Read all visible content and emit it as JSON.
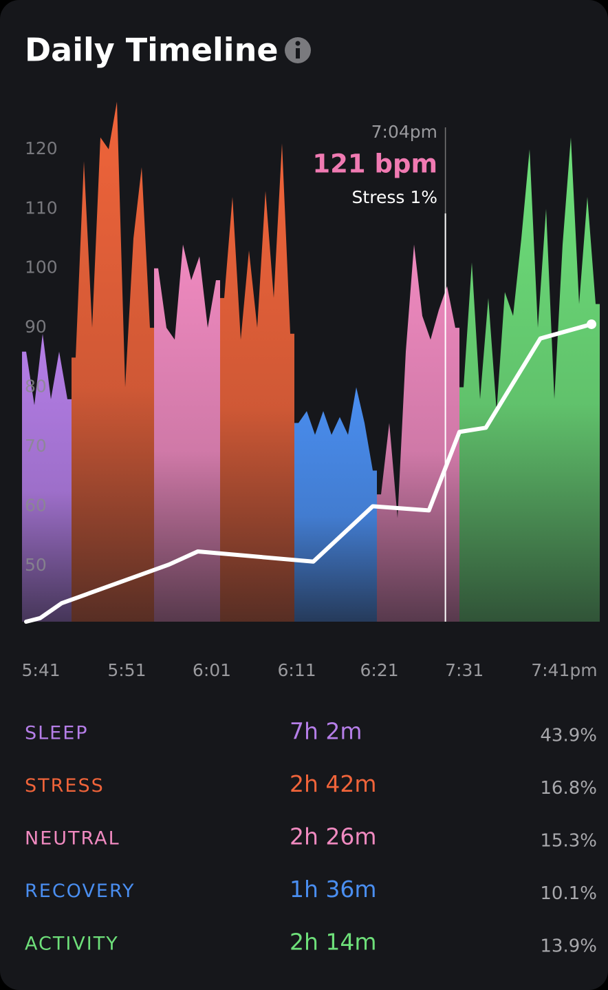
{
  "header": {
    "title": "Daily Timeline"
  },
  "chart_data": {
    "type": "area",
    "ylim": [
      40.6,
      128.9
    ],
    "yticks": [
      50,
      60,
      70,
      80,
      90,
      100,
      110,
      120
    ],
    "grid": false,
    "xlim": [
      0,
      69
    ],
    "xticks": [
      {
        "value": 1.8,
        "label": "5:41"
      },
      {
        "value": 12.2,
        "label": "5:51"
      },
      {
        "value": 22.5,
        "label": "6:01"
      },
      {
        "value": 32.8,
        "label": "6:11"
      },
      {
        "value": 42.8,
        "label": "6:21"
      },
      {
        "value": 53.1,
        "label": "7:31"
      },
      {
        "value": 65.2,
        "label": "7:41pm"
      }
    ],
    "series": [
      {
        "color": "#b57ee8",
        "values": [
          86,
          77,
          89,
          78,
          86,
          78,
          null,
          null,
          null,
          null,
          null,
          null,
          null,
          null,
          null,
          null,
          null,
          null,
          null,
          null,
          null,
          null,
          null,
          null,
          null,
          null,
          null,
          null,
          null,
          null,
          null,
          null,
          null,
          null,
          null,
          null,
          null,
          null,
          null,
          null,
          null,
          null,
          null,
          null,
          null,
          null,
          null,
          null,
          null,
          null,
          null,
          null,
          null,
          null,
          null,
          null,
          null,
          null,
          null,
          null,
          null,
          null,
          null,
          null,
          null,
          null,
          null,
          null,
          null,
          null
        ]
      },
      {
        "color": "#f0643a",
        "values": [
          null,
          null,
          null,
          null,
          null,
          null,
          85,
          118,
          90,
          122,
          120,
          128,
          80,
          105,
          117,
          90,
          null,
          null,
          null,
          null,
          null,
          null,
          null,
          null,
          95,
          112,
          88,
          103,
          90,
          113,
          95,
          121,
          89,
          null,
          null,
          null,
          null,
          null,
          null,
          null,
          null,
          null,
          null,
          null,
          null,
          null,
          null,
          null,
          null,
          null,
          null,
          null,
          null,
          null,
          null,
          null,
          null,
          null,
          null,
          null,
          null,
          null,
          null,
          null,
          null,
          null,
          null,
          null,
          null,
          null
        ]
      },
      {
        "color": "#f08ac0",
        "values": [
          null,
          null,
          null,
          null,
          null,
          null,
          null,
          null,
          null,
          null,
          null,
          null,
          null,
          null,
          null,
          null,
          100,
          90,
          88,
          104,
          98,
          102,
          90,
          98,
          null,
          null,
          null,
          null,
          null,
          null,
          null,
          null,
          null,
          null,
          null,
          null,
          null,
          null,
          null,
          null,
          null,
          null,
          null,
          62,
          74,
          58,
          86,
          104,
          92,
          88,
          93,
          97,
          90,
          null,
          null,
          null,
          null,
          null,
          null,
          null,
          null,
          null,
          null,
          null,
          null,
          null,
          null,
          null,
          null,
          null
        ]
      },
      {
        "color": "#4a8ef0",
        "values": [
          null,
          null,
          null,
          null,
          null,
          null,
          null,
          null,
          null,
          null,
          null,
          null,
          null,
          null,
          null,
          null,
          null,
          null,
          null,
          null,
          null,
          null,
          null,
          null,
          null,
          null,
          null,
          null,
          null,
          null,
          null,
          null,
          null,
          74,
          76,
          72,
          76,
          72,
          75,
          72,
          80,
          74,
          66,
          null,
          null,
          null,
          null,
          null,
          null,
          null,
          null,
          null,
          null,
          null,
          null,
          null,
          null,
          null,
          null,
          null,
          null,
          null,
          null,
          null,
          null,
          null,
          null,
          null,
          null,
          null
        ]
      },
      {
        "color": "#6ee07a",
        "values": [
          null,
          null,
          null,
          null,
          null,
          null,
          null,
          null,
          null,
          null,
          null,
          null,
          null,
          null,
          null,
          null,
          null,
          null,
          null,
          null,
          null,
          null,
          null,
          null,
          null,
          null,
          null,
          null,
          null,
          null,
          null,
          null,
          null,
          null,
          null,
          null,
          null,
          null,
          null,
          null,
          null,
          null,
          null,
          null,
          null,
          null,
          null,
          null,
          null,
          null,
          null,
          null,
          null,
          80,
          101,
          78,
          95,
          76,
          96,
          92,
          105,
          120,
          90,
          110,
          78,
          104,
          122,
          94,
          112,
          94
        ]
      }
    ],
    "line": {
      "color": "#ffffff",
      "x": [
        0,
        1.7,
        4.3,
        17.3,
        20.8,
        34.8,
        42,
        48.8,
        52.5,
        55.7,
        62.3,
        68.5
      ],
      "values": [
        40.6,
        41.2,
        43.7,
        50.2,
        52.4,
        50.7,
        60.0,
        59.3,
        72.5,
        73.2,
        88.2,
        90.6
      ]
    },
    "cursor": {
      "x": 50.8,
      "time": "7:04pm",
      "value_label": "121 bpm",
      "stress": "Stress 1%"
    }
  },
  "summary": {
    "rows": [
      {
        "label": "SLEEP",
        "duration": "7h 2m",
        "percent": "43.9%",
        "color": "#b57ee8"
      },
      {
        "label": "STRESS",
        "duration": "2h 42m",
        "percent": "16.8%",
        "color": "#f0643a"
      },
      {
        "label": "NEUTRAL",
        "duration": "2h 26m",
        "percent": "15.3%",
        "color": "#f08ac0"
      },
      {
        "label": "RECOVERY",
        "duration": "1h 36m",
        "percent": "10.1%",
        "color": "#4a8ef0"
      },
      {
        "label": "ACTIVITY",
        "duration": "2h 14m",
        "percent": "13.9%",
        "color": "#6ee07a"
      }
    ]
  }
}
